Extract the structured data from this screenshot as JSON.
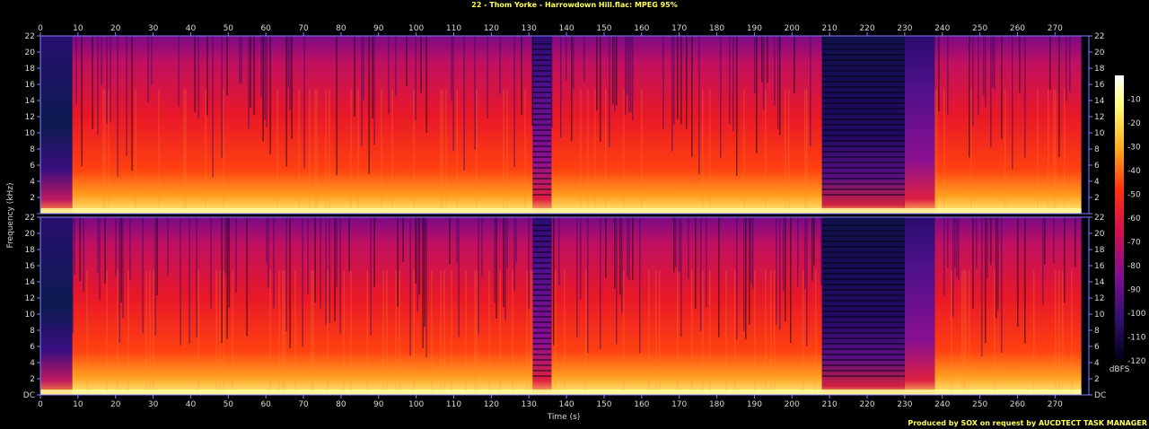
{
  "title": "22 - Thom Yorke - Harrowdown Hill.flac: MPEG 95%",
  "credit": "Produced by SOX on request by AUCDTECT TASK MANAGER",
  "chart_data": {
    "type": "heatmap",
    "title": "22 - Thom Yorke - Harrowdown Hill.flac: MPEG 95%",
    "xlabel": "Time (s)",
    "ylabel": "Frequency (kHz)",
    "x_range": [
      0,
      279
    ],
    "y_range": [
      0,
      22
    ],
    "x_ticks": [
      "0",
      "10",
      "20",
      "30",
      "40",
      "50",
      "60",
      "70",
      "80",
      "90",
      "100",
      "110",
      "120",
      "130",
      "140",
      "150",
      "160",
      "170",
      "180",
      "190",
      "200",
      "210",
      "220",
      "230",
      "240",
      "250",
      "260",
      "270"
    ],
    "y_ticks": [
      "DC",
      "2",
      "4",
      "6",
      "8",
      "10",
      "12",
      "14",
      "16",
      "18",
      "20",
      "22"
    ],
    "channels": [
      "left",
      "right"
    ],
    "colorbar": {
      "label": "dBFS",
      "ticks": [
        "-10",
        "-20",
        "-30",
        "-40",
        "-50",
        "-60",
        "-70",
        "-80",
        "-90",
        "-100",
        "-110",
        "-120"
      ],
      "range": [
        -120,
        0
      ]
    },
    "segments_seconds": [
      {
        "start": 0,
        "end": 8.5,
        "level": "quiet intro, energy mostly below 6 kHz"
      },
      {
        "start": 8.5,
        "end": 131,
        "level": "loud, full band to 22 kHz"
      },
      {
        "start": 131,
        "end": 136,
        "level": "reduced, banded upper spectrum"
      },
      {
        "start": 136,
        "end": 208,
        "level": "loud, full band to 22 kHz"
      },
      {
        "start": 208,
        "end": 230,
        "level": "quiet, mostly below 4 kHz"
      },
      {
        "start": 230,
        "end": 238,
        "level": "medium, upper band cut above 16 kHz"
      },
      {
        "start": 238,
        "end": 277,
        "level": "loud, full band"
      }
    ]
  }
}
